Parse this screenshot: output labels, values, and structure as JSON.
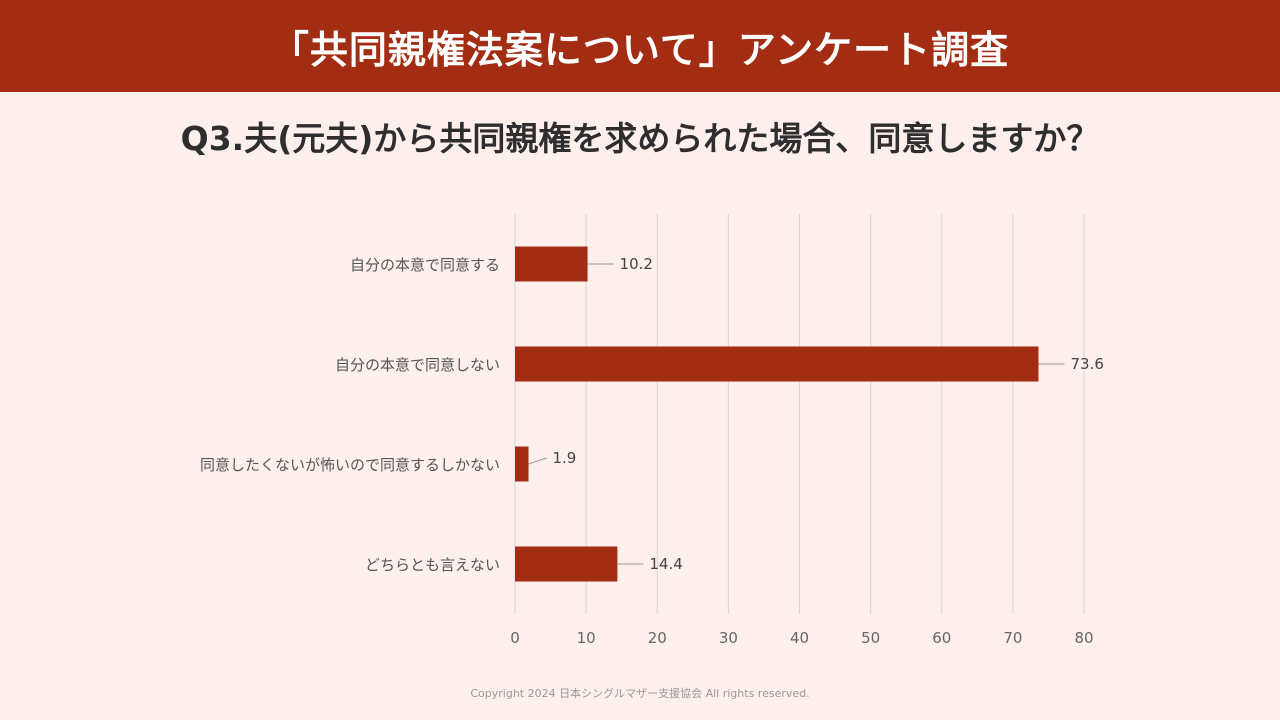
{
  "header": {
    "title": "「共同親権法案について」アンケート調査"
  },
  "question": "Q3.夫(元夫)から共同親権を求められた場合、同意しますか？",
  "footer": "Copyright 2024 日本シングルマザー支援協会 All rights reserved.",
  "chart_data": {
    "type": "bar",
    "orientation": "horizontal",
    "categories": [
      "自分の本意で同意する",
      "自分の本意で同意しない",
      "同意したくないが怖いので同意するしかない",
      "どちらとも言えない"
    ],
    "values": [
      10.2,
      73.6,
      1.9,
      14.4
    ],
    "data_labels": [
      "10.2",
      "73.6",
      "1.9",
      "14.4"
    ],
    "xlim": [
      0,
      80
    ],
    "xticks": [
      0,
      10,
      20,
      30,
      40,
      50,
      60,
      70,
      80
    ],
    "grid": true,
    "bar_color": "#a32d12",
    "grid_color": "#dcd3dc"
  }
}
